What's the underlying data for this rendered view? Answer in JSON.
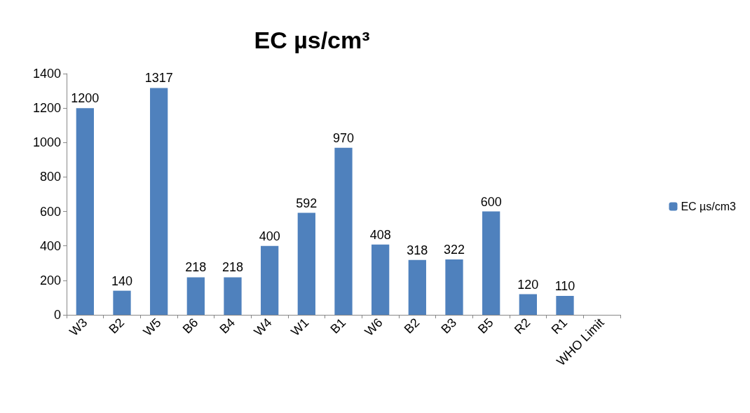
{
  "chart_data": {
    "type": "bar",
    "title": "EC µs/cm³",
    "categories": [
      "W3",
      "B2",
      "W5",
      "B6",
      "B4",
      "W4",
      "W1",
      "B1",
      "W6",
      "B2",
      "B3",
      "B5",
      "R2",
      "R1",
      "WHO Limit"
    ],
    "series": [
      {
        "name": "EC µs/cm3",
        "color": "#4f81bd",
        "values": [
          1200,
          140,
          1317,
          218,
          218,
          400,
          592,
          970,
          408,
          318,
          322,
          600,
          120,
          110,
          null
        ]
      }
    ],
    "ylim": [
      0,
      1400
    ],
    "yticks": [
      0,
      200,
      400,
      600,
      800,
      1000,
      1200,
      1400
    ],
    "grid": false,
    "legend": "right",
    "data_labels": true
  }
}
